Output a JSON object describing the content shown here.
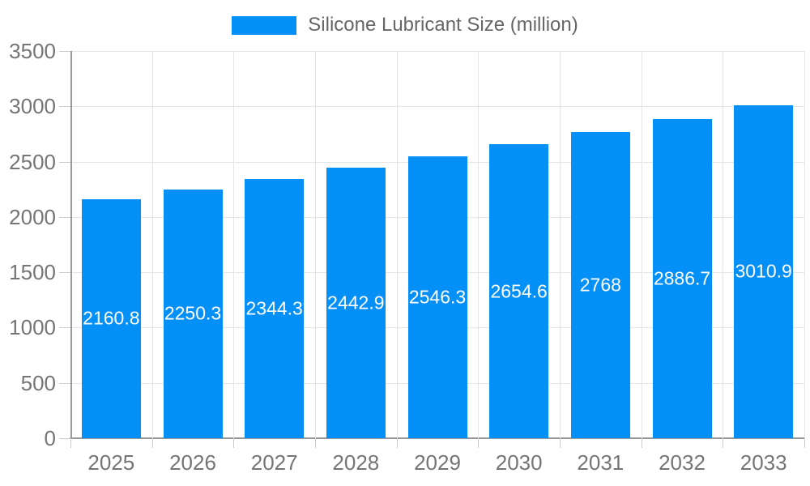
{
  "legend": {
    "label": "Silicone Lubricant Size (million)"
  },
  "colors": {
    "bar": "#0590f8",
    "legend_text": "#666666",
    "axis_labels": "#757575",
    "gridline": "#e6e6e6",
    "axis_line": "#999999",
    "tick": "#cccccc",
    "value_label": "#ffffff"
  },
  "chart_data": {
    "type": "bar",
    "title": "",
    "xlabel": "",
    "ylabel": "",
    "categories": [
      "2025",
      "2026",
      "2027",
      "2028",
      "2029",
      "2030",
      "2031",
      "2032",
      "2033"
    ],
    "series": [
      {
        "name": "Silicone Lubricant Size (million)",
        "values": [
          2160.8,
          2250.3,
          2344.3,
          2442.9,
          2546.3,
          2654.6,
          2768,
          2886.7,
          3010.9
        ]
      }
    ],
    "value_labels_shown": true,
    "value_label_position": "inside-center",
    "ylim": [
      0,
      3500
    ],
    "yticks": [
      0,
      500,
      1000,
      1500,
      2000,
      2500,
      3000,
      3500
    ],
    "grid": true,
    "legend_position": "top-center"
  }
}
